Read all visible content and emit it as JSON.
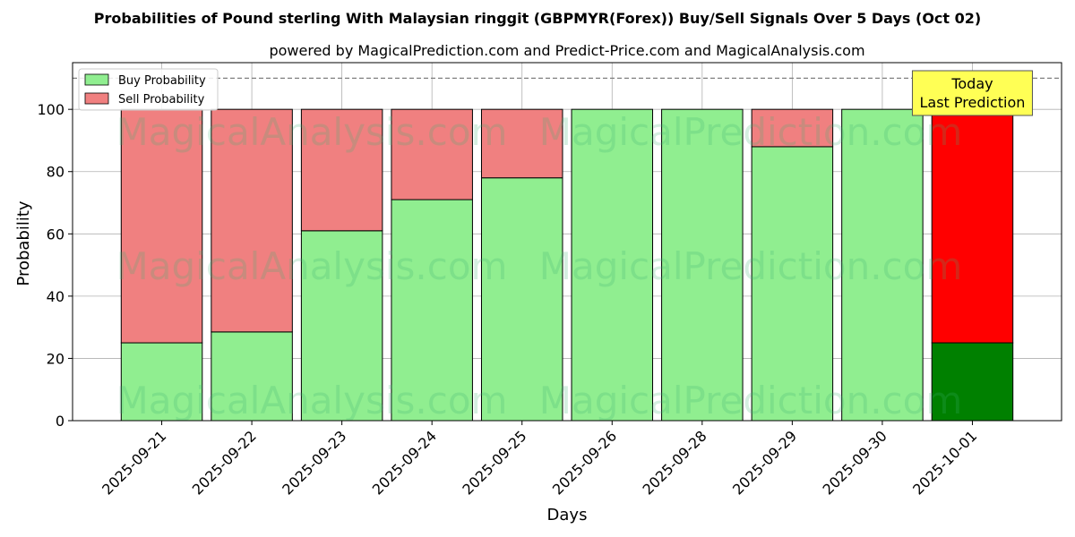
{
  "chart_data": {
    "type": "bar",
    "stacked": true,
    "title": "Probabilities of Pound sterling With Malaysian ringgit (GBPMYR(Forex)) Buy/Sell Signals Over 5 Days (Oct 02)",
    "subtitle": "powered by MagicalPrediction.com and Predict-Price.com and MagicalAnalysis.com",
    "xlabel": "Days",
    "ylabel": "Probability",
    "ylim": [
      0,
      115
    ],
    "yticks": [
      0,
      20,
      40,
      60,
      80,
      100
    ],
    "grid": true,
    "legend_position": "top-left",
    "reference_line": 110,
    "categories": [
      "2025-09-21",
      "2025-09-22",
      "2025-09-23",
      "2025-09-24",
      "2025-09-25",
      "2025-09-26",
      "2025-09-28",
      "2025-09-29",
      "2025-09-30",
      "2025-10-01"
    ],
    "series": [
      {
        "name": "Buy Probability",
        "values": [
          25,
          28.5,
          61,
          71,
          78,
          100,
          100,
          88,
          100,
          25
        ]
      },
      {
        "name": "Sell Probability",
        "values": [
          75,
          71.5,
          39,
          29,
          22,
          0,
          0,
          12,
          0,
          75
        ]
      }
    ],
    "colors": {
      "buy": "#90ee90",
      "sell": "#f08080",
      "buy_today": "#008000",
      "sell_today": "#ff0000",
      "annotation_bg": "#ffff55"
    },
    "annotation": "Today\nLast Prediction",
    "watermarks": [
      "MagicalAnalysis.com",
      "MagicalPrediction.com"
    ]
  }
}
